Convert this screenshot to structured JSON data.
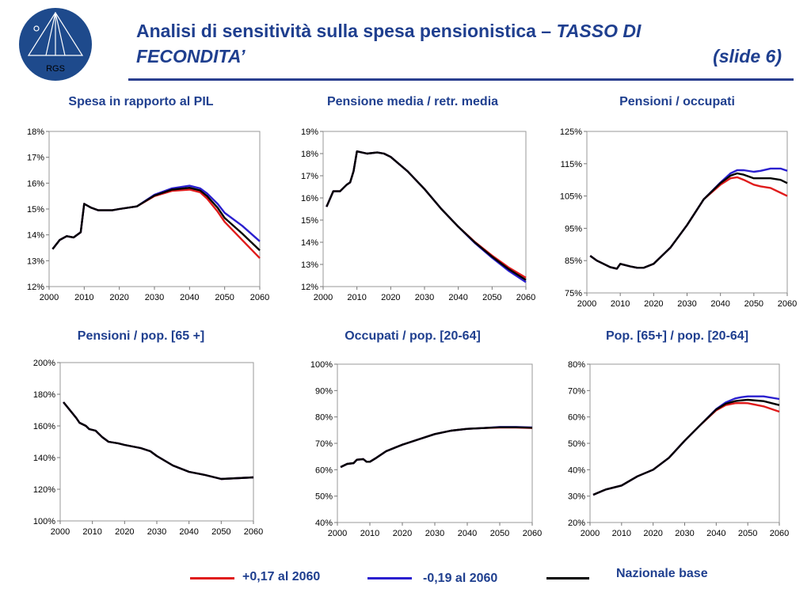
{
  "header": {
    "title_main": "Analisi di sensitività sulla spesa pensionistica – ",
    "title_italic": "TASSO DI",
    "title_line2": "FECONDITA’",
    "slide_label": "(slide 6)",
    "logo_text": "RGS"
  },
  "colors": {
    "high": "#e01b1b",
    "low": "#2a1fcf",
    "base": "#000000",
    "title": "#1f3f8f"
  },
  "legend": [
    {
      "label": "+0,17 al 2060",
      "color": "#e01b1b"
    },
    {
      "label": "-0,19 al 2060",
      "color": "#2a1fcf"
    },
    {
      "label": "Nazionale base",
      "color": "#000000"
    }
  ],
  "chart_data": [
    {
      "type": "line",
      "title": "Spesa in rapporto al PIL",
      "ylim": [
        12,
        18
      ],
      "ytick_labels": [
        "12%",
        "13%",
        "14%",
        "15%",
        "16%",
        "17%",
        "18%"
      ],
      "xtick_labels": [
        "2000",
        "2010",
        "2020",
        "2030",
        "2040",
        "2050",
        "2060"
      ],
      "x": [
        2001,
        2003,
        2005,
        2007,
        2009,
        2010,
        2012,
        2014,
        2016,
        2018,
        2020,
        2025,
        2030,
        2035,
        2040,
        2043,
        2045,
        2048,
        2050,
        2055,
        2060
      ],
      "series": [
        {
          "name": "+0,17 al 2060",
          "values": [
            13.45,
            13.8,
            13.95,
            13.9,
            14.1,
            15.2,
            15.05,
            14.95,
            14.95,
            14.95,
            15.0,
            15.1,
            15.5,
            15.7,
            15.75,
            15.65,
            15.4,
            14.9,
            14.5,
            13.8,
            13.1
          ]
        },
        {
          "name": "-0,19 al 2060",
          "values": [
            13.45,
            13.8,
            13.95,
            13.9,
            14.1,
            15.2,
            15.05,
            14.95,
            14.95,
            14.95,
            15.0,
            15.1,
            15.55,
            15.8,
            15.9,
            15.8,
            15.6,
            15.2,
            14.85,
            14.35,
            13.75
          ]
        },
        {
          "name": "Nazionale base",
          "values": [
            13.45,
            13.8,
            13.95,
            13.9,
            14.1,
            15.2,
            15.05,
            14.95,
            14.95,
            14.95,
            15.0,
            15.1,
            15.52,
            15.75,
            15.82,
            15.72,
            15.5,
            15.05,
            14.65,
            14.05,
            13.4
          ]
        }
      ]
    },
    {
      "type": "line",
      "title": "Pensione media / retr. media",
      "ylim": [
        12,
        19
      ],
      "ytick_labels": [
        "12%",
        "13%",
        "14%",
        "15%",
        "16%",
        "17%",
        "18%",
        "19%"
      ],
      "xtick_labels": [
        "2000",
        "2010",
        "2020",
        "2030",
        "2040",
        "2050",
        "2060"
      ],
      "x": [
        2001,
        2003,
        2005,
        2007,
        2008,
        2009,
        2010,
        2013,
        2016,
        2018,
        2020,
        2025,
        2030,
        2035,
        2040,
        2045,
        2050,
        2055,
        2060
      ],
      "series": [
        {
          "name": "+0,17 al 2060",
          "values": [
            15.6,
            16.3,
            16.3,
            16.6,
            16.7,
            17.2,
            18.1,
            18.0,
            18.05,
            18.0,
            17.85,
            17.2,
            16.4,
            15.5,
            14.7,
            14.0,
            13.4,
            12.85,
            12.4
          ]
        },
        {
          "name": "-0,19 al 2060",
          "values": [
            15.6,
            16.3,
            16.3,
            16.6,
            16.7,
            17.2,
            18.1,
            18.0,
            18.05,
            18.0,
            17.85,
            17.2,
            16.4,
            15.5,
            14.7,
            13.95,
            13.3,
            12.7,
            12.2
          ]
        },
        {
          "name": "Nazionale base",
          "values": [
            15.6,
            16.3,
            16.3,
            16.6,
            16.7,
            17.2,
            18.1,
            18.0,
            18.05,
            18.0,
            17.85,
            17.2,
            16.4,
            15.5,
            14.7,
            13.98,
            13.35,
            12.78,
            12.3
          ]
        }
      ]
    },
    {
      "type": "line",
      "title": "Pensioni / occupati",
      "ylim": [
        75,
        125
      ],
      "ytick_labels": [
        "75%",
        "85%",
        "95%",
        "105%",
        "115%",
        "125%"
      ],
      "xtick_labels": [
        "2000",
        "2010",
        "2020",
        "2030",
        "2040",
        "2050",
        "2060"
      ],
      "x": [
        2001,
        2003,
        2005,
        2007,
        2009,
        2010,
        2013,
        2015,
        2017,
        2020,
        2025,
        2030,
        2035,
        2040,
        2043,
        2045,
        2047,
        2050,
        2052,
        2055,
        2058,
        2060
      ],
      "series": [
        {
          "name": "+0,17 al 2060",
          "values": [
            86.5,
            85,
            84,
            83,
            82.5,
            84,
            83.2,
            82.8,
            82.8,
            84,
            89,
            96,
            104,
            108.5,
            110.5,
            110.8,
            110,
            108.5,
            108,
            107.5,
            106,
            105
          ]
        },
        {
          "name": "-0,19 al 2060",
          "values": [
            86.5,
            85,
            84,
            83,
            82.5,
            84,
            83.2,
            82.8,
            82.8,
            84,
            89,
            96,
            104,
            109.2,
            112,
            113,
            113,
            112.5,
            112.8,
            113.5,
            113.5,
            112.8
          ]
        },
        {
          "name": "Nazionale base",
          "values": [
            86.5,
            85,
            84,
            83,
            82.5,
            84,
            83.2,
            82.8,
            82.8,
            84,
            89,
            96,
            104,
            109,
            111.3,
            112,
            111.6,
            110.5,
            110.5,
            110.5,
            110,
            109
          ]
        }
      ]
    },
    {
      "type": "line",
      "title": "Pensioni / pop. [65 +]",
      "ylim": [
        100,
        200
      ],
      "ytick_labels": [
        "100%",
        "120%",
        "140%",
        "160%",
        "180%",
        "200%"
      ],
      "xtick_labels": [
        "2000",
        "2010",
        "2020",
        "2030",
        "2040",
        "2050",
        "2060"
      ],
      "x": [
        2001,
        2003,
        2005,
        2006,
        2008,
        2009,
        2011,
        2013,
        2015,
        2018,
        2020,
        2025,
        2028,
        2030,
        2035,
        2040,
        2045,
        2050,
        2055,
        2060
      ],
      "series": [
        {
          "name": "+0,17 al 2060",
          "values": [
            175,
            170,
            165,
            162,
            160,
            158,
            157,
            153,
            150,
            149,
            148,
            146,
            144,
            141,
            135,
            131,
            129,
            126.5,
            127,
            127.5
          ]
        },
        {
          "name": "-0,19 al 2060",
          "values": [
            175,
            170,
            165,
            162,
            160,
            158,
            157,
            153,
            150,
            149,
            148,
            146,
            144,
            141,
            135,
            131,
            129,
            126.5,
            127,
            127.5
          ]
        },
        {
          "name": "Nazionale base",
          "values": [
            175,
            170,
            165,
            162,
            160,
            158,
            157,
            153,
            150,
            149,
            148,
            146,
            144,
            141,
            135,
            131,
            129,
            126.5,
            127,
            127.5
          ]
        }
      ]
    },
    {
      "type": "line",
      "title": "Occupati / pop. [20-64]",
      "ylim": [
        40,
        100
      ],
      "ytick_labels": [
        "40%",
        "50%",
        "60%",
        "70%",
        "80%",
        "90%",
        "100%"
      ],
      "xtick_labels": [
        "2000",
        "2010",
        "2020",
        "2030",
        "2040",
        "2050",
        "2060"
      ],
      "x": [
        2001,
        2003,
        2005,
        2006,
        2008,
        2009,
        2010,
        2012,
        2015,
        2018,
        2020,
        2025,
        2030,
        2035,
        2040,
        2045,
        2050,
        2055,
        2060
      ],
      "series": [
        {
          "name": "+0,17 al 2060",
          "values": [
            61,
            62.2,
            62.5,
            63.8,
            64,
            63,
            63,
            64.5,
            67,
            68.5,
            69.5,
            71.5,
            73.5,
            74.8,
            75.5,
            75.8,
            76,
            76,
            75.8
          ]
        },
        {
          "name": "-0,19 al 2060",
          "values": [
            61,
            62.2,
            62.5,
            63.8,
            64,
            63,
            63,
            64.5,
            67,
            68.5,
            69.5,
            71.5,
            73.5,
            74.8,
            75.5,
            75.8,
            76.2,
            76.2,
            76
          ]
        },
        {
          "name": "Nazionale base",
          "values": [
            61,
            62.2,
            62.5,
            63.8,
            64,
            63,
            63,
            64.5,
            67,
            68.5,
            69.5,
            71.5,
            73.5,
            74.8,
            75.5,
            75.8,
            76.1,
            76.1,
            75.9
          ]
        }
      ]
    },
    {
      "type": "line",
      "title": "Pop. [65+] / pop. [20-64]",
      "ylim": [
        20,
        80
      ],
      "ytick_labels": [
        "20%",
        "30%",
        "40%",
        "50%",
        "60%",
        "70%",
        "80%"
      ],
      "xtick_labels": [
        "2000",
        "2010",
        "2020",
        "2030",
        "2040",
        "2050",
        "2060"
      ],
      "x": [
        2001,
        2005,
        2010,
        2015,
        2020,
        2025,
        2030,
        2035,
        2040,
        2043,
        2046,
        2048,
        2050,
        2055,
        2060
      ],
      "series": [
        {
          "name": "+0,17 al 2060",
          "values": [
            30.5,
            32.5,
            34,
            37.5,
            40,
            44.5,
            51,
            57,
            62.5,
            64.5,
            65.2,
            65.3,
            65.2,
            64,
            62
          ]
        },
        {
          "name": "-0,19 al 2060",
          "values": [
            30.5,
            32.5,
            34,
            37.5,
            40,
            44.5,
            51,
            57,
            63,
            65.5,
            67,
            67.5,
            67.8,
            67.8,
            66.8
          ]
        },
        {
          "name": "Nazionale base",
          "values": [
            30.5,
            32.5,
            34,
            37.5,
            40,
            44.5,
            51,
            57,
            62.8,
            65,
            66,
            66.3,
            66.5,
            66,
            64.5
          ]
        }
      ]
    }
  ]
}
